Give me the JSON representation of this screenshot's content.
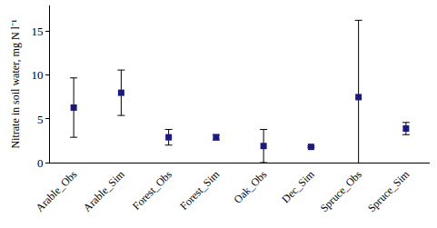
{
  "chart_data": {
    "type": "scatter",
    "y_label": "Nitrate in soil water, mg N l⁻¹",
    "categories": [
      "Arable_Obs",
      "Arable_Sim",
      "Forest_Obs",
      "Forest_Sim",
      "Oak_Obs",
      "Dec_Sim",
      "Spruce_Obs",
      "Spruce_Sim"
    ],
    "values": [
      6.3,
      8.0,
      2.9,
      2.9,
      1.9,
      1.8,
      7.5,
      3.9
    ],
    "errors": [
      3.4,
      2.6,
      0.9,
      0.3,
      1.9,
      0.1,
      8.8,
      0.7
    ],
    "color": "#1a1a80",
    "marker": "square",
    "ylim": [
      0,
      18
    ],
    "yticks": [
      0,
      5,
      10,
      15
    ],
    "grid": false
  }
}
